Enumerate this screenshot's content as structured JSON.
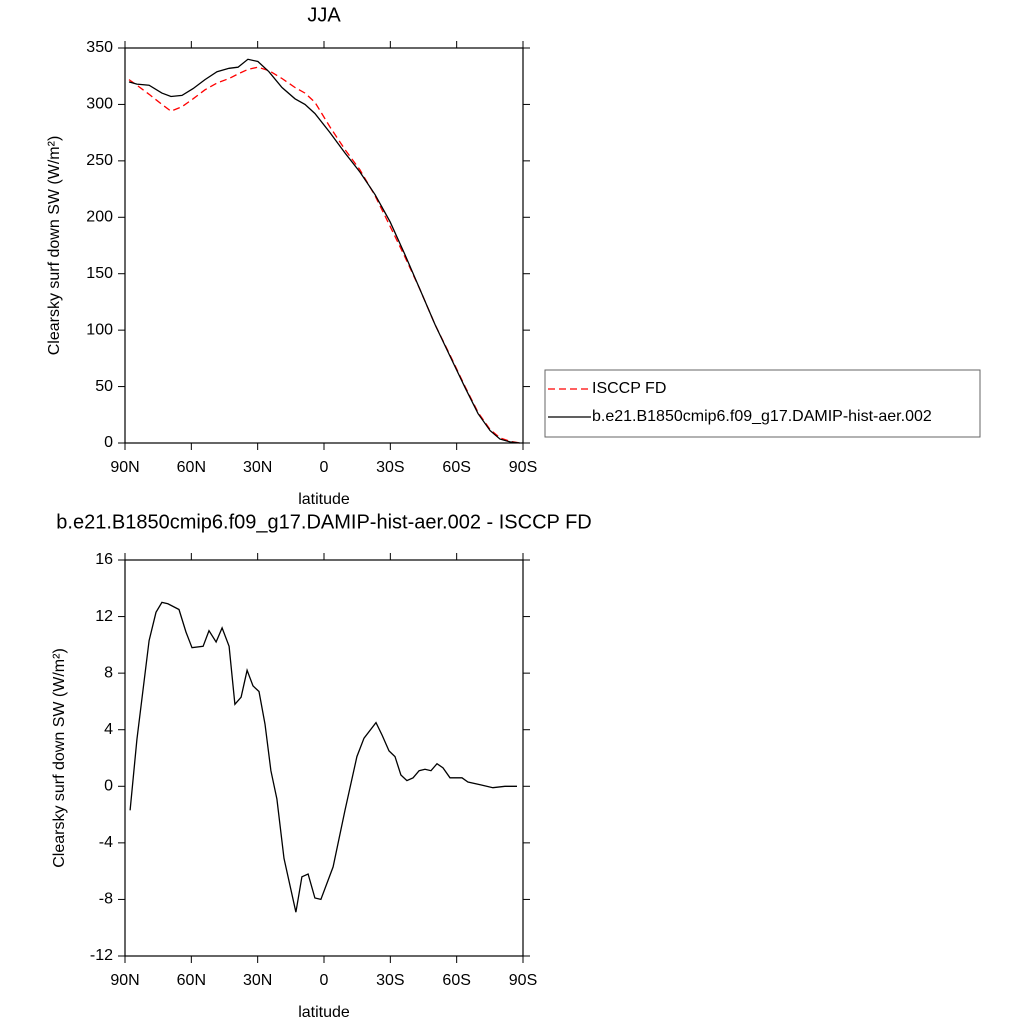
{
  "chart_data": [
    {
      "type": "line",
      "title": "JJA",
      "xlabel": "latitude",
      "ylabel": "Clearsky surf down SW (W/m²)",
      "x": [
        88.2,
        84.6,
        79.1,
        73.3,
        69.2,
        64.2,
        59.2,
        53.8,
        48.4,
        42.9,
        38.9,
        34.4,
        29.9,
        24.9,
        19.0,
        13.1,
        8.6,
        4.1,
        -2.7,
        -9.5,
        -16.3,
        -23.1,
        -29.9,
        -36.6,
        -43.4,
        -50.2,
        -57.0,
        -63.8,
        -69.7,
        -75.1,
        -79.6,
        -84.1,
        -88.6
      ],
      "series": [
        {
          "name": "ISCCP FD",
          "color": "#ff0000",
          "linestyle": "dashed",
          "values": [
            322,
            317,
            309,
            300,
            294,
            298,
            305,
            313,
            319,
            323,
            327,
            331,
            333,
            330,
            323,
            315,
            310,
            302,
            280,
            260,
            242,
            219,
            192,
            165,
            136,
            105,
            78,
            50,
            27,
            12,
            4.5,
            1.5,
            0
          ]
        },
        {
          "name": "b.e21.B1850cmip6.f09_g17.DAMIP-hist-aer.002",
          "color": "#000000",
          "linestyle": "solid",
          "values": [
            320,
            318,
            317,
            310,
            307,
            308,
            314,
            322,
            329,
            332,
            333,
            340,
            338,
            329,
            315,
            305,
            300,
            292,
            275,
            257,
            240,
            220,
            196,
            167,
            136,
            105,
            77,
            49,
            26,
            11,
            3.5,
            1,
            0
          ]
        }
      ],
      "xlim": [
        90,
        -90
      ],
      "xticks": [
        {
          "value": 90,
          "label": "90N"
        },
        {
          "value": 60,
          "label": "60N"
        },
        {
          "value": 30,
          "label": "30N"
        },
        0,
        {
          "value": -30,
          "label": "30S"
        },
        {
          "value": -60,
          "label": "60S"
        },
        {
          "value": -90,
          "label": "90S"
        }
      ],
      "ylim": [
        0,
        350
      ],
      "yticks": [
        0,
        50,
        100,
        150,
        200,
        250,
        300,
        350
      ],
      "legend": "right"
    },
    {
      "type": "line",
      "title": "b.e21.B1850cmip6.f09_g17.DAMIP-hist-aer.002 - ISCCP FD",
      "xlabel": "latitude",
      "ylabel": "Clearsky surf down SW (W/m²)",
      "x": [
        87.7,
        84.6,
        79.1,
        76.0,
        73.3,
        70.6,
        65.6,
        62.4,
        59.7,
        54.7,
        52.0,
        48.8,
        46.1,
        42.9,
        40.3,
        37.5,
        34.8,
        32.1,
        29.4,
        26.7,
        24.0,
        21.3,
        18.1,
        12.7,
        10.0,
        7.2,
        4.1,
        1.4,
        -4.1,
        -9.5,
        -14.9,
        -18.1,
        -23.5,
        -26.3,
        -29.4,
        -32.1,
        -34.8,
        -37.5,
        -40.3,
        -43.0,
        -45.7,
        -48.4,
        -51.1,
        -53.8,
        -57.0,
        -62.4,
        -65.1,
        -70.9,
        -76.4,
        -81.8,
        -87.3
      ],
      "series": [
        {
          "color": "#000000",
          "linestyle": "solid",
          "values": [
            -1.7,
            3.3,
            10.3,
            12.3,
            13.0,
            12.9,
            12.5,
            10.9,
            9.8,
            9.9,
            11.0,
            10.2,
            11.2,
            9.9,
            5.8,
            6.3,
            8.2,
            7.1,
            6.7,
            4.4,
            1.1,
            -0.9,
            -5.1,
            -8.9,
            -6.4,
            -6.2,
            -7.9,
            -8.0,
            -5.7,
            -1.7,
            2.1,
            3.4,
            4.5,
            3.6,
            2.5,
            2.1,
            0.8,
            0.4,
            0.6,
            1.1,
            1.2,
            1.1,
            1.6,
            1.3,
            0.6,
            0.6,
            0.3,
            0.1,
            -0.1,
            0.0,
            0.0
          ]
        }
      ],
      "xlim": [
        90,
        -90
      ],
      "xticks": [
        {
          "value": 90,
          "label": "90N"
        },
        {
          "value": 60,
          "label": "60N"
        },
        {
          "value": 30,
          "label": "30N"
        },
        0,
        {
          "value": -30,
          "label": "30S"
        },
        {
          "value": -60,
          "label": "60S"
        },
        {
          "value": -90,
          "label": "90S"
        }
      ],
      "ylim": [
        -12,
        16
      ],
      "yticks": [
        -12,
        -8,
        -4,
        0,
        4,
        8,
        12,
        16
      ]
    }
  ]
}
